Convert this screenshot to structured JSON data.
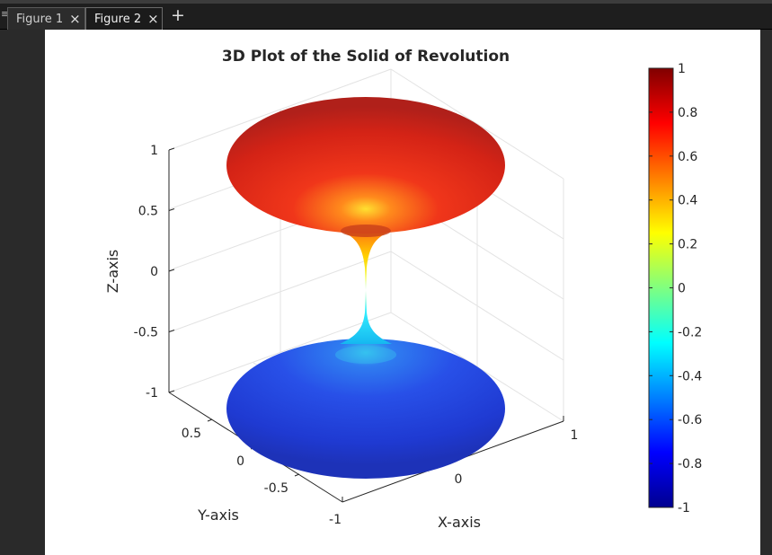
{
  "tabs": [
    {
      "label": "Figure 1",
      "close_icon": "close-icon",
      "active": false
    },
    {
      "label": "Figure 2",
      "close_icon": "close-icon",
      "active": true
    }
  ],
  "menu_icon": "menu-icon",
  "add_tab_icon": "plus-icon",
  "glyphs": {
    "menu": "≡",
    "close": "×",
    "plus": "+"
  },
  "chart_data": {
    "type": "surface",
    "title": "3D Plot of the Solid of Revolution",
    "xlabel": "X-axis",
    "ylabel": "Y-axis",
    "zlabel": "Z-axis",
    "xlim": [
      -1,
      1
    ],
    "ylim": [
      -1,
      1
    ],
    "zlim": [
      -1,
      1
    ],
    "x_ticks": [
      "-1",
      "0",
      "1"
    ],
    "y_ticks": [
      "0.5",
      "0",
      "-0.5"
    ],
    "z_ticks": [
      "1",
      "0.5",
      "0",
      "-0.5",
      "-1"
    ],
    "surface": {
      "description_of_shape": "solid of revolution, max radius 1 at z=±1, radius 0 at z=0",
      "radius_at_z_pm1": 1,
      "radius_at_z0": 0
    },
    "grid": true,
    "colormap": "jet",
    "colorbar": {
      "range": [
        -1,
        1
      ],
      "ticks": [
        "1",
        "0.8",
        "0.6",
        "0.4",
        "0.2",
        "0",
        "-0.2",
        "-0.4",
        "-0.6",
        "-0.8",
        "-1"
      ],
      "placement": "right"
    },
    "colors": {
      "top": "#d01a12",
      "bottom": "#1b3fd0",
      "neck_top": "#ffd000",
      "neck_bottom": "#20e0ff"
    }
  }
}
